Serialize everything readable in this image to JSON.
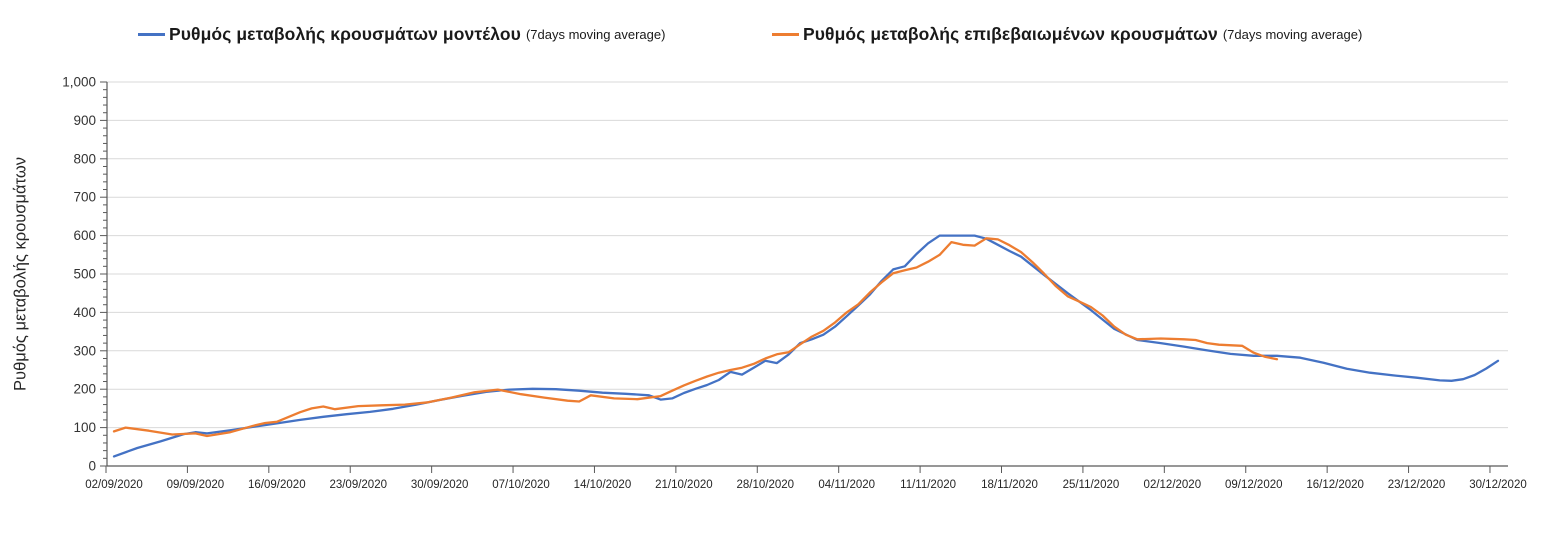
{
  "legend": {
    "items": [
      {
        "label": "Ρυθμός μεταβολής κρουσμάτων μοντέλου",
        "suffix": "(7days moving average)",
        "color": "#4472c4"
      },
      {
        "label": "Ρυθμός μεταβολής επιβεβαιωμένων κρουσμάτων",
        "suffix": "(7days moving average)",
        "color": "#ed7d31"
      }
    ]
  },
  "chart_data": {
    "type": "line",
    "title": "",
    "xlabel": "",
    "ylabel": "Ρυθμός μεταβολής κρουσμάτων",
    "ylim": [
      0,
      1000
    ],
    "y_major_interval": 100,
    "y_minor_interval": 20,
    "y_tick_labels": [
      "0",
      "100",
      "200",
      "300",
      "400",
      "500",
      "600",
      "700",
      "800",
      "900",
      "1,000"
    ],
    "grid": "horizontal",
    "gridline_color": "#d9d9d9",
    "axis_color": "#595959",
    "tick_label_color": "#333333",
    "legend_position": "top",
    "x_start": "02/09/2020",
    "x_end": "30/12/2020",
    "x_tick_labels": [
      "02/09/2020",
      "09/09/2020",
      "16/09/2020",
      "23/09/2020",
      "30/09/2020",
      "07/10/2020",
      "14/10/2020",
      "21/10/2020",
      "28/10/2020",
      "04/11/2020",
      "11/11/2020",
      "18/11/2020",
      "25/11/2020",
      "02/12/2020",
      "09/12/2020",
      "16/12/2020",
      "23/12/2020",
      "30/12/2020"
    ],
    "series": [
      {
        "name": "Ρυθμός μεταβολής κρουσμάτων μοντέλου (7days moving average)",
        "color": "#4472c4",
        "points": [
          [
            "02/09/2020",
            25
          ],
          [
            "04/09/2020",
            47
          ],
          [
            "06/09/2020",
            64
          ],
          [
            "08/09/2020",
            83
          ],
          [
            "09/09/2020",
            88
          ],
          [
            "10/09/2020",
            85
          ],
          [
            "12/09/2020",
            93
          ],
          [
            "14/09/2020",
            102
          ],
          [
            "16/09/2020",
            111
          ],
          [
            "18/09/2020",
            120
          ],
          [
            "20/09/2020",
            128
          ],
          [
            "22/09/2020",
            135
          ],
          [
            "24/09/2020",
            141
          ],
          [
            "26/09/2020",
            149
          ],
          [
            "28/09/2020",
            160
          ],
          [
            "30/09/2020",
            172
          ],
          [
            "02/10/2020",
            183
          ],
          [
            "04/10/2020",
            193
          ],
          [
            "06/10/2020",
            199
          ],
          [
            "08/10/2020",
            201
          ],
          [
            "10/10/2020",
            200
          ],
          [
            "12/10/2020",
            196
          ],
          [
            "14/10/2020",
            191
          ],
          [
            "16/10/2020",
            188
          ],
          [
            "18/10/2020",
            184
          ],
          [
            "19/10/2020",
            173
          ],
          [
            "20/10/2020",
            176
          ],
          [
            "21/10/2020",
            190
          ],
          [
            "22/10/2020",
            201
          ],
          [
            "23/10/2020",
            211
          ],
          [
            "24/10/2020",
            224
          ],
          [
            "25/10/2020",
            245
          ],
          [
            "26/10/2020",
            238
          ],
          [
            "27/10/2020",
            256
          ],
          [
            "28/10/2020",
            274
          ],
          [
            "29/10/2020",
            268
          ],
          [
            "30/10/2020",
            290
          ],
          [
            "31/10/2020",
            320
          ],
          [
            "01/11/2020",
            330
          ],
          [
            "02/11/2020",
            342
          ],
          [
            "03/11/2020",
            363
          ],
          [
            "04/11/2020",
            390
          ],
          [
            "05/11/2020",
            418
          ],
          [
            "06/11/2020",
            447
          ],
          [
            "07/11/2020",
            482
          ],
          [
            "08/11/2020",
            512
          ],
          [
            "09/11/2020",
            520
          ],
          [
            "10/11/2020",
            552
          ],
          [
            "11/11/2020",
            580
          ],
          [
            "12/11/2020",
            600
          ],
          [
            "14/11/2020",
            600
          ],
          [
            "15/11/2020",
            600
          ],
          [
            "16/11/2020",
            592
          ],
          [
            "17/11/2020",
            576
          ],
          [
            "18/11/2020",
            560
          ],
          [
            "19/11/2020",
            545
          ],
          [
            "21/11/2020",
            497
          ],
          [
            "23/11/2020",
            450
          ],
          [
            "25/11/2020",
            406
          ],
          [
            "27/11/2020",
            357
          ],
          [
            "29/11/2020",
            328
          ],
          [
            "01/12/2020",
            320
          ],
          [
            "03/12/2020",
            311
          ],
          [
            "05/12/2020",
            301
          ],
          [
            "07/12/2020",
            292
          ],
          [
            "09/12/2020",
            287
          ],
          [
            "11/12/2020",
            287
          ],
          [
            "13/12/2020",
            282
          ],
          [
            "15/12/2020",
            269
          ],
          [
            "17/12/2020",
            253
          ],
          [
            "19/12/2020",
            243
          ],
          [
            "21/12/2020",
            236
          ],
          [
            "23/12/2020",
            230
          ],
          [
            "25/12/2020",
            223
          ],
          [
            "26/12/2020",
            222
          ],
          [
            "27/12/2020",
            226
          ],
          [
            "28/12/2020",
            237
          ],
          [
            "29/12/2020",
            254
          ],
          [
            "30/12/2020",
            274
          ]
        ]
      },
      {
        "name": "Ρυθμός μεταβολής επιβεβαιωμένων κρουσμάτων (7days moving average)",
        "color": "#ed7d31",
        "points": [
          [
            "02/09/2020",
            90
          ],
          [
            "03/09/2020",
            100
          ],
          [
            "05/09/2020",
            92
          ],
          [
            "07/09/2020",
            82
          ],
          [
            "09/09/2020",
            85
          ],
          [
            "10/09/2020",
            78
          ],
          [
            "12/09/2020",
            88
          ],
          [
            "14/09/2020",
            105
          ],
          [
            "15/09/2020",
            112
          ],
          [
            "16/09/2020",
            115
          ],
          [
            "18/09/2020",
            140
          ],
          [
            "19/09/2020",
            150
          ],
          [
            "20/09/2020",
            155
          ],
          [
            "21/09/2020",
            148
          ],
          [
            "23/09/2020",
            156
          ],
          [
            "25/09/2020",
            158
          ],
          [
            "27/09/2020",
            160
          ],
          [
            "29/09/2020",
            166
          ],
          [
            "01/10/2020",
            178
          ],
          [
            "03/10/2020",
            192
          ],
          [
            "05/10/2020",
            199
          ],
          [
            "07/10/2020",
            187
          ],
          [
            "09/10/2020",
            178
          ],
          [
            "11/10/2020",
            170
          ],
          [
            "12/10/2020",
            168
          ],
          [
            "13/10/2020",
            184
          ],
          [
            "15/10/2020",
            176
          ],
          [
            "17/10/2020",
            174
          ],
          [
            "19/10/2020",
            182
          ],
          [
            "20/10/2020",
            196
          ],
          [
            "21/10/2020",
            210
          ],
          [
            "22/10/2020",
            222
          ],
          [
            "23/10/2020",
            233
          ],
          [
            "24/10/2020",
            243
          ],
          [
            "25/10/2020",
            250
          ],
          [
            "26/10/2020",
            256
          ],
          [
            "27/10/2020",
            266
          ],
          [
            "28/10/2020",
            280
          ],
          [
            "29/10/2020",
            291
          ],
          [
            "30/10/2020",
            296
          ],
          [
            "31/10/2020",
            317
          ],
          [
            "01/11/2020",
            337
          ],
          [
            "02/11/2020",
            352
          ],
          [
            "03/11/2020",
            374
          ],
          [
            "04/11/2020",
            400
          ],
          [
            "05/11/2020",
            421
          ],
          [
            "06/11/2020",
            452
          ],
          [
            "07/11/2020",
            478
          ],
          [
            "08/11/2020",
            502
          ],
          [
            "09/11/2020",
            510
          ],
          [
            "10/11/2020",
            517
          ],
          [
            "11/11/2020",
            532
          ],
          [
            "12/11/2020",
            550
          ],
          [
            "13/11/2020",
            583
          ],
          [
            "14/11/2020",
            576
          ],
          [
            "15/11/2020",
            574
          ],
          [
            "16/11/2020",
            593
          ],
          [
            "17/11/2020",
            590
          ],
          [
            "18/11/2020",
            575
          ],
          [
            "19/11/2020",
            557
          ],
          [
            "20/11/2020",
            530
          ],
          [
            "21/11/2020",
            500
          ],
          [
            "22/11/2020",
            468
          ],
          [
            "23/11/2020",
            442
          ],
          [
            "24/11/2020",
            428
          ],
          [
            "25/11/2020",
            414
          ],
          [
            "26/11/2020",
            392
          ],
          [
            "27/11/2020",
            363
          ],
          [
            "28/11/2020",
            342
          ],
          [
            "29/11/2020",
            330
          ],
          [
            "01/12/2020",
            332
          ],
          [
            "03/12/2020",
            330
          ],
          [
            "04/12/2020",
            328
          ],
          [
            "05/12/2020",
            320
          ],
          [
            "06/12/2020",
            316
          ],
          [
            "08/12/2020",
            313
          ],
          [
            "09/12/2020",
            295
          ],
          [
            "10/12/2020",
            284
          ],
          [
            "11/12/2020",
            278
          ]
        ]
      }
    ]
  }
}
